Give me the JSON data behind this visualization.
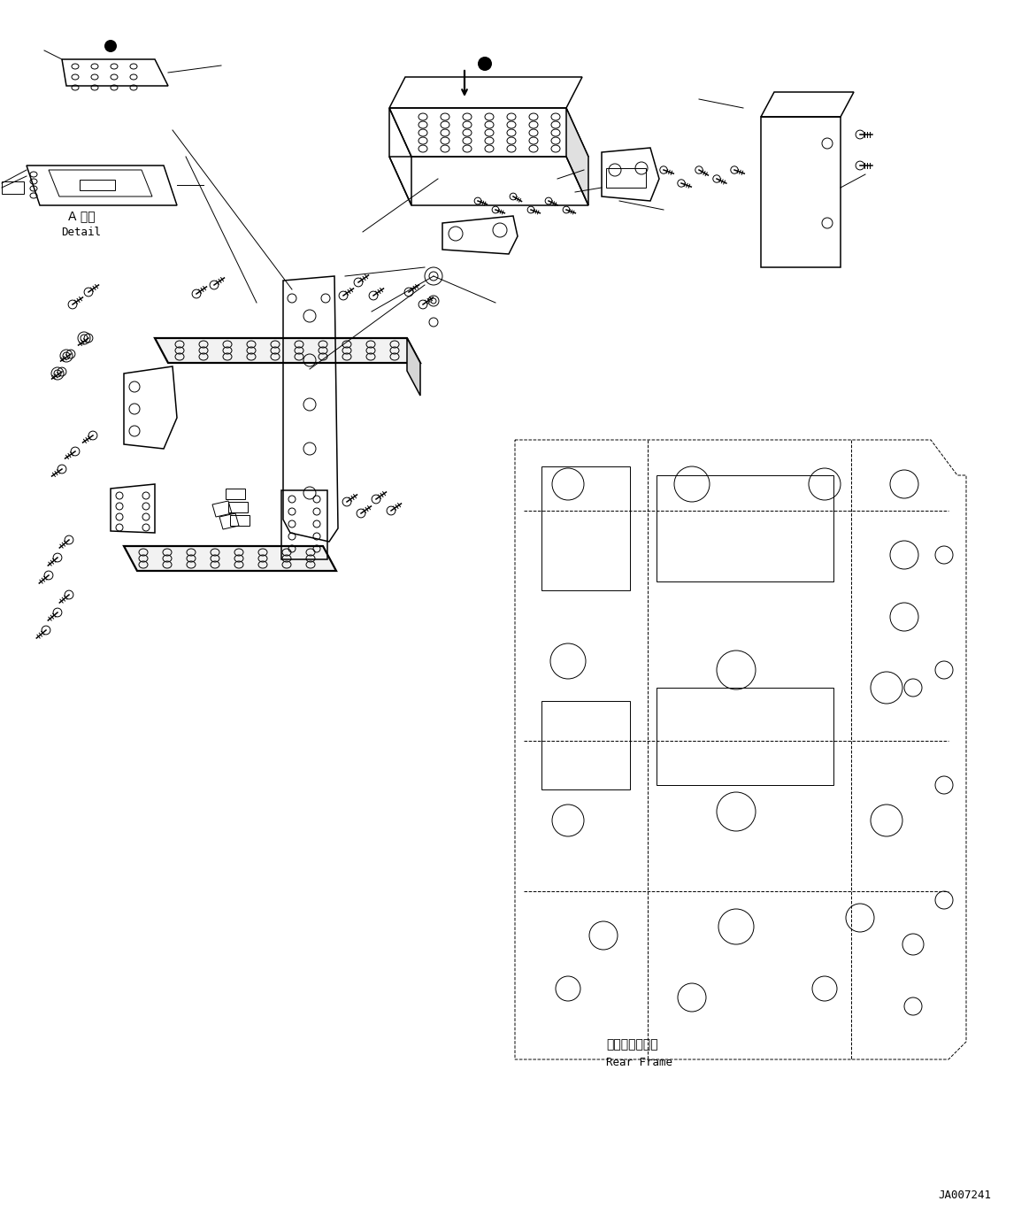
{
  "background_color": "#ffffff",
  "line_color": "#000000",
  "fig_width": 11.63,
  "fig_height": 13.92,
  "dpi": 100,
  "text_detail_jp": "A 詳細",
  "text_detail_en": "Detail",
  "text_frame_jp": "リヤーフレーム",
  "text_frame_en": "Rear Frame",
  "text_docnum": "JA007241"
}
